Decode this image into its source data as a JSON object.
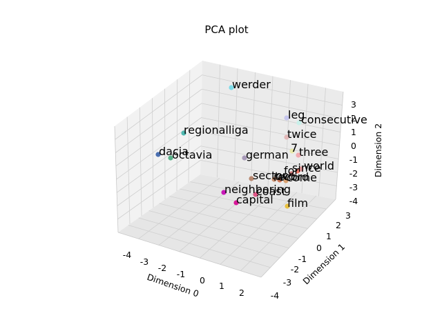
{
  "chart_data": {
    "type": "scatter",
    "title": "PCA plot",
    "xlabel": "Dimension 0",
    "ylabel": "Dimension 1",
    "zlabel": "Dimension 2",
    "xticks": [
      "-4",
      "-3",
      "-2",
      "-1",
      "0",
      "1",
      "2"
    ],
    "yticks": [
      "-4",
      "-3",
      "-2",
      "-1",
      "0",
      "1",
      "2",
      "3"
    ],
    "zticks": [
      "-4",
      "-3",
      "-2",
      "-1",
      "0",
      "1",
      "2",
      "3"
    ],
    "points": [
      {
        "label": "werder",
        "color": "#7ddbe8"
      },
      {
        "label": "leg",
        "color": "#c6c6ee"
      },
      {
        "label": "consecutive",
        "color": "#c8f0ea"
      },
      {
        "label": "regionalliga",
        "color": "#4fb8b0"
      },
      {
        "label": "twice",
        "color": "#e2b8b8"
      },
      {
        "label": "7",
        "color": "#e8e8a8"
      },
      {
        "label": "three",
        "color": "#f2aab0"
      },
      {
        "label": "dacia",
        "color": "#4a6fb0"
      },
      {
        "label": "octavia",
        "color": "#58b088"
      },
      {
        "label": "german",
        "color": "#a89ab8"
      },
      {
        "label": "world",
        "color": "#f0a0a0"
      },
      {
        "label": "since",
        "color": "#f07868"
      },
      {
        "label": "for",
        "color": "#c87878"
      },
      {
        "label": "sector",
        "color": "#b88870"
      },
      {
        "label": "two",
        "color": "#c89070"
      },
      {
        "label": "record",
        "color": "#d07858"
      },
      {
        "label": "come",
        "color": "#d8a070"
      },
      {
        "label": "neighboring",
        "color": "#c818b8"
      },
      {
        "label": "coast",
        "color": "#e05888"
      },
      {
        "label": "capital",
        "color": "#d81898"
      },
      {
        "label": "film",
        "color": "#e8c040"
      }
    ]
  }
}
